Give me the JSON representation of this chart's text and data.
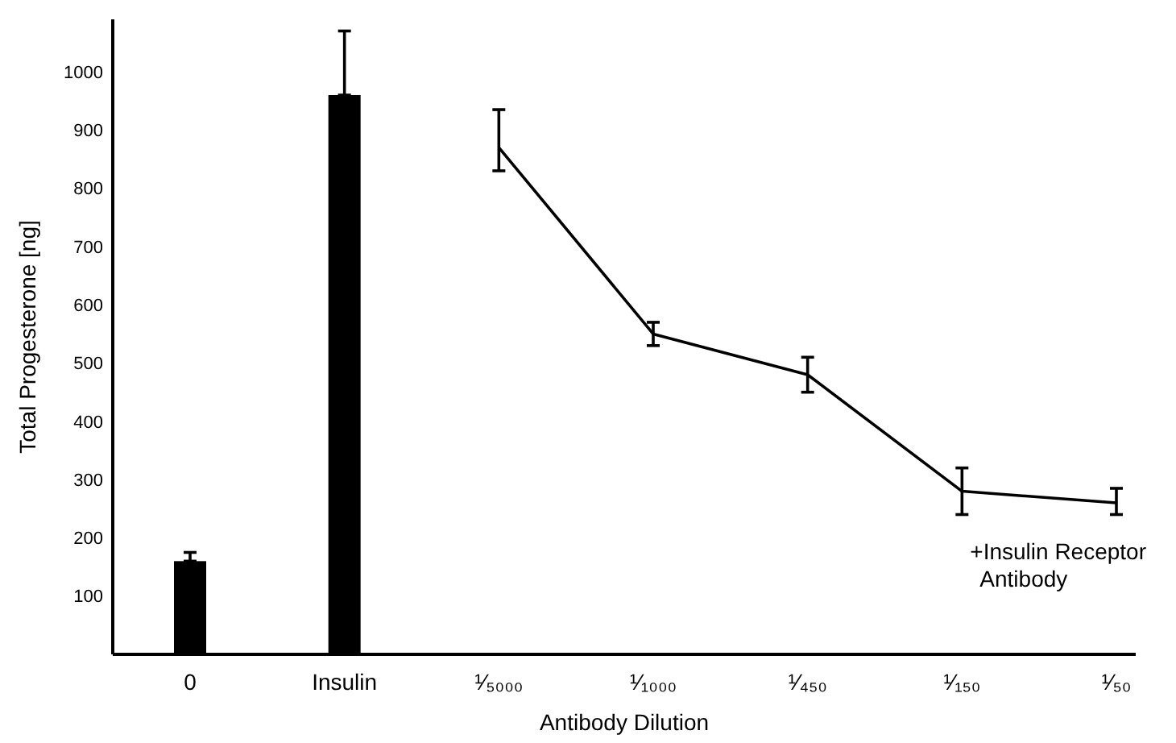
{
  "chart_data": {
    "type": "bar",
    "xlabel": "Antibody Dilution",
    "ylabel": "Total Progesterone [ng]",
    "categories": [
      "0",
      "Insulin",
      "¹⁄₅₀₀₀",
      "¹⁄₁₀₀₀",
      "¹⁄₄₅₀",
      "¹⁄₁₅₀",
      "¹⁄₅₀"
    ],
    "ylim": [
      0,
      1090
    ],
    "yticks": [
      100,
      200,
      300,
      400,
      500,
      600,
      700,
      800,
      900,
      1000
    ],
    "grid": false,
    "series": [
      {
        "color": "#000000",
        "values": [
          160,
          960,
          null,
          null,
          null,
          null,
          null
        ],
        "errors": [
          [
            160,
            175
          ],
          [
            960,
            1070
          ],
          null,
          null,
          null,
          null,
          null
        ]
      },
      {
        "type": "line",
        "color": "#000000",
        "marker": "none",
        "line_style": "solid",
        "values": [
          null,
          null,
          870,
          550,
          480,
          280,
          260
        ],
        "errors": [
          null,
          null,
          [
            830,
            935
          ],
          [
            530,
            570
          ],
          [
            450,
            510
          ],
          [
            240,
            320
          ],
          [
            240,
            285
          ]
        ]
      }
    ],
    "annotations": [
      "+Insulin Receptor Antibody"
    ]
  }
}
